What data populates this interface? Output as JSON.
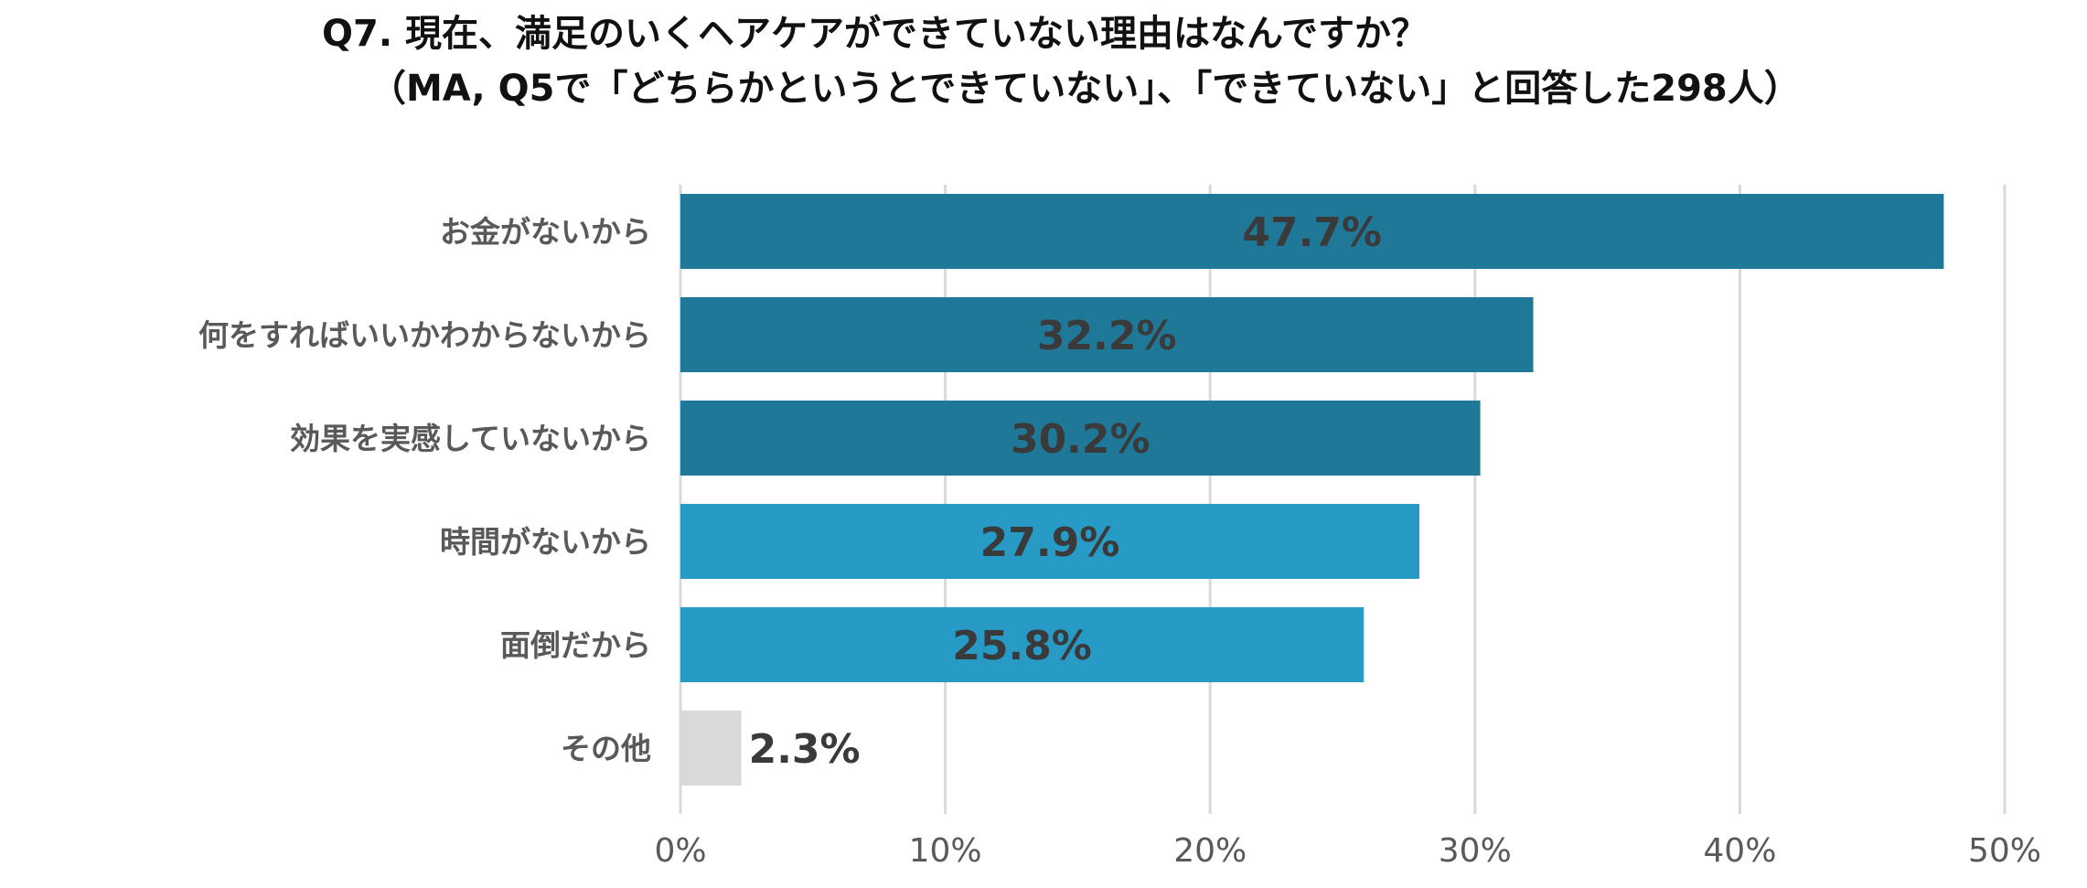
{
  "chart_data": {
    "type": "bar",
    "orientation": "horizontal",
    "title": "Q7. 現在、満足のいくヘアケアができていない理由はなんですか？",
    "subtitle": "（MA, Q5で「どちらかというとできていない」、「できていない」と回答した298人）",
    "categories": [
      "お金がないから",
      "何をすればいいかわからないから",
      "効果を実感していないから",
      "時間がないから",
      "面倒だから",
      "その他"
    ],
    "values": [
      47.7,
      32.2,
      30.2,
      27.9,
      25.8,
      2.3
    ],
    "value_labels": [
      "47.7%",
      "32.2%",
      "30.2%",
      "27.9%",
      "25.8%",
      "2.3%"
    ],
    "bar_colors": [
      "#207899",
      "#207899",
      "#207899",
      "#289ac6",
      "#289ac6",
      "#d9d9d9"
    ],
    "xlim": [
      0,
      50
    ],
    "xticks": [
      0,
      10,
      20,
      30,
      40,
      50
    ],
    "xtick_labels": [
      "0%",
      "10%",
      "20%",
      "30%",
      "40%",
      "50%"
    ],
    "grid": "vertical",
    "legend": "none"
  }
}
